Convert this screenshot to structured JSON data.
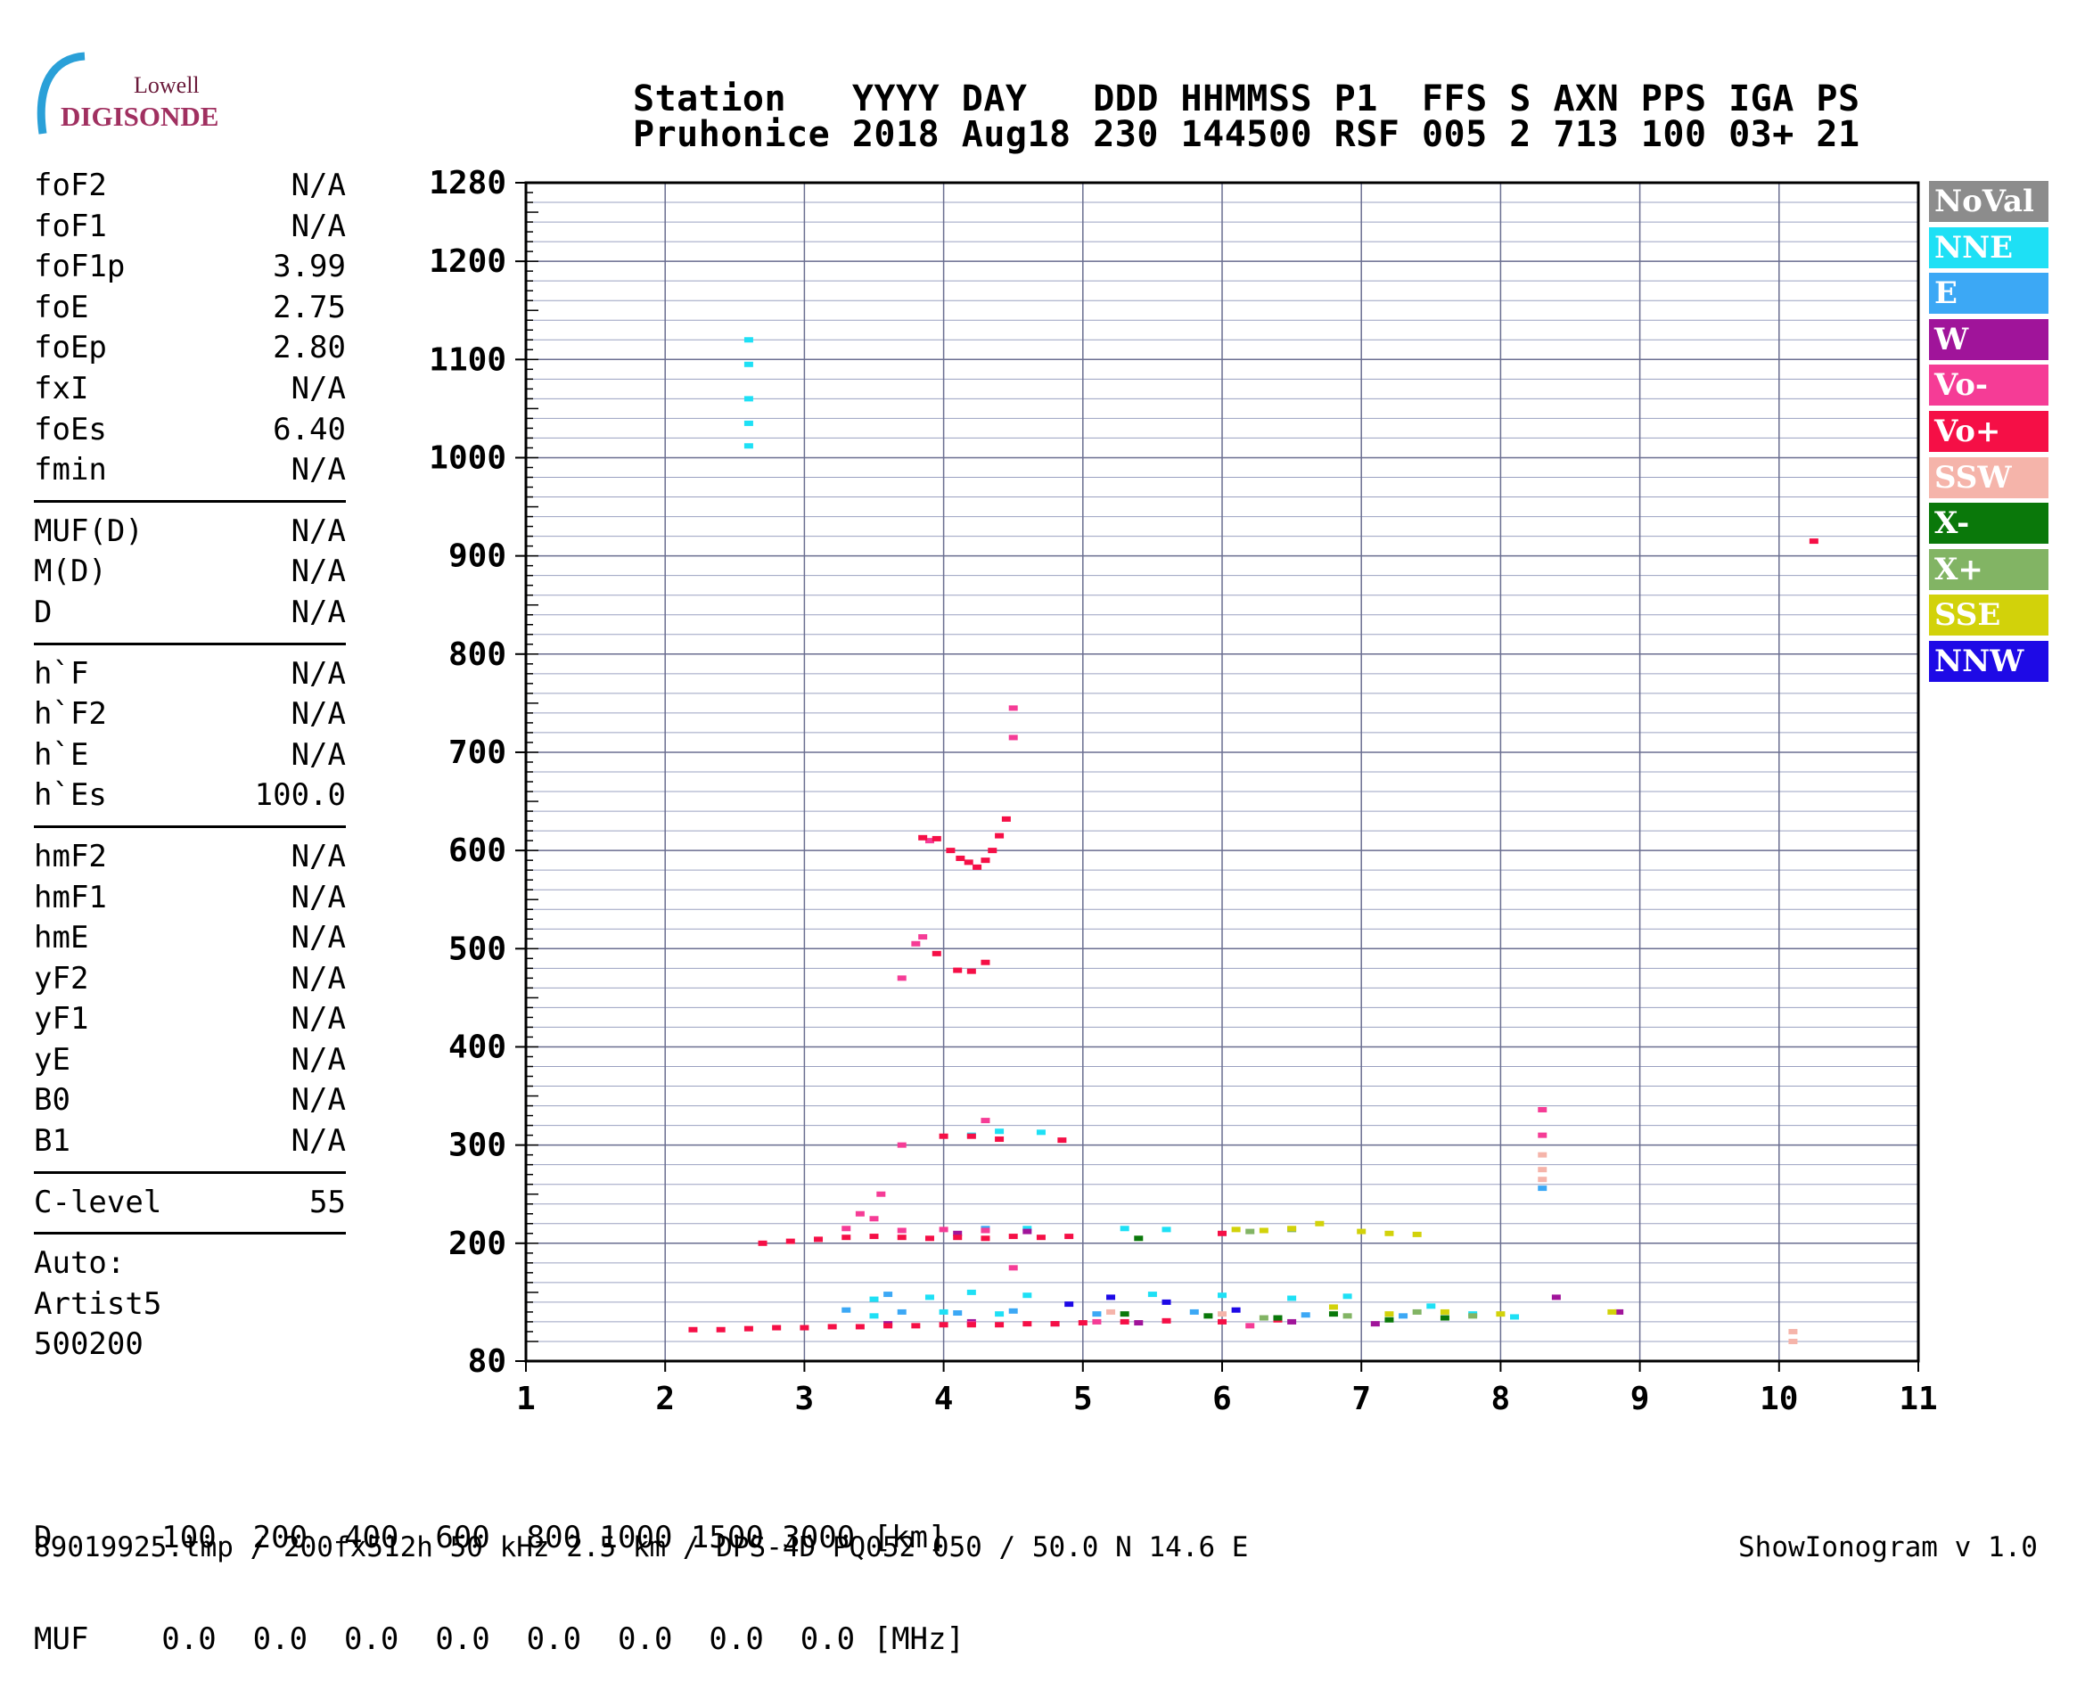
{
  "logo": {
    "line1": "Lowell",
    "line2": "DIGISONDE"
  },
  "header": {
    "labels": "Station   YYYY DAY   DDD HHMMSS P1  FFS S AXN PPS IGA PS",
    "values": "Pruhonice 2018 Aug18 230 144500 RSF 005 2 713 100 03+ 21"
  },
  "params": {
    "group1": [
      {
        "name": "foF2",
        "value": "N/A"
      },
      {
        "name": "foF1",
        "value": "N/A"
      },
      {
        "name": "foF1p",
        "value": "3.99"
      },
      {
        "name": "foE",
        "value": "2.75"
      },
      {
        "name": "foEp",
        "value": "2.80"
      },
      {
        "name": "fxI",
        "value": "N/A"
      },
      {
        "name": "foEs",
        "value": "6.40"
      },
      {
        "name": "fmin",
        "value": "N/A"
      }
    ],
    "group2": [
      {
        "name": "MUF(D)",
        "value": "N/A"
      },
      {
        "name": "M(D)",
        "value": "N/A"
      },
      {
        "name": "D",
        "value": "N/A"
      }
    ],
    "group3": [
      {
        "name": "h`F",
        "value": "N/A"
      },
      {
        "name": "h`F2",
        "value": "N/A"
      },
      {
        "name": "h`E",
        "value": "N/A"
      },
      {
        "name": "h`Es",
        "value": "100.0"
      }
    ],
    "group4": [
      {
        "name": "hmF2",
        "value": "N/A"
      },
      {
        "name": "hmF1",
        "value": "N/A"
      },
      {
        "name": "hmE",
        "value": "N/A"
      },
      {
        "name": "yF2",
        "value": "N/A"
      },
      {
        "name": "yF1",
        "value": "N/A"
      },
      {
        "name": "yE",
        "value": "N/A"
      },
      {
        "name": "B0",
        "value": "N/A"
      },
      {
        "name": "B1",
        "value": "N/A"
      }
    ],
    "group5": [
      {
        "name": "C-level",
        "value": "55"
      }
    ],
    "auto": [
      "Auto:",
      "Artist5",
      "500200"
    ]
  },
  "legend": [
    {
      "label": "NoVal",
      "color": "#8c8c8c"
    },
    {
      "label": "NNE",
      "color": "#1ee0f5"
    },
    {
      "label": "E",
      "color": "#3ca8f5"
    },
    {
      "label": "W",
      "color": "#a0149a"
    },
    {
      "label": "Vo-",
      "color": "#f53c96"
    },
    {
      "label": "Vo+",
      "color": "#f50f46"
    },
    {
      "label": "SSW",
      "color": "#f5b4aa"
    },
    {
      "label": "X-",
      "color": "#0a780a"
    },
    {
      "label": "X+",
      "color": "#82b464"
    },
    {
      "label": "SSE",
      "color": "#d2d20a"
    },
    {
      "label": "NNW",
      "color": "#1e0ae6"
    }
  ],
  "chart_data": {
    "type": "scatter",
    "xlim": [
      1,
      11
    ],
    "ylim": [
      80,
      1280
    ],
    "x_ticks": [
      1,
      2,
      3,
      4,
      5,
      6,
      7,
      8,
      9,
      10,
      11
    ],
    "y_ticks": [
      80,
      200,
      300,
      400,
      500,
      600,
      700,
      800,
      900,
      1000,
      1100,
      1200,
      1280
    ],
    "grid": true,
    "series": [
      {
        "name": "NNE",
        "points": [
          [
            2.6,
            1120
          ],
          [
            2.6,
            1095
          ],
          [
            2.6,
            1060
          ],
          [
            2.6,
            1035
          ],
          [
            2.6,
            1012
          ],
          [
            4.2,
            310
          ],
          [
            4.4,
            314
          ],
          [
            4.7,
            313
          ],
          [
            3.5,
            143
          ],
          [
            3.9,
            145
          ],
          [
            4.2,
            150
          ],
          [
            4.6,
            147
          ],
          [
            5.5,
            148
          ],
          [
            6.0,
            147
          ],
          [
            6.5,
            144
          ],
          [
            6.9,
            146
          ],
          [
            7.5,
            136
          ],
          [
            7.8,
            128
          ],
          [
            8.1,
            125
          ],
          [
            5.3,
            215
          ],
          [
            5.6,
            214
          ],
          [
            4.6,
            215
          ],
          [
            3.5,
            126
          ],
          [
            4.0,
            130
          ],
          [
            4.4,
            128
          ]
        ]
      },
      {
        "name": "E",
        "points": [
          [
            3.3,
            132
          ],
          [
            3.7,
            130
          ],
          [
            4.1,
            129
          ],
          [
            4.5,
            131
          ],
          [
            5.1,
            128
          ],
          [
            5.8,
            130
          ],
          [
            6.6,
            127
          ],
          [
            7.3,
            126
          ],
          [
            8.3,
            256
          ],
          [
            4.3,
            215
          ],
          [
            3.6,
            148
          ]
        ]
      },
      {
        "name": "W",
        "points": [
          [
            3.6,
            118
          ],
          [
            4.2,
            120
          ],
          [
            4.8,
            118
          ],
          [
            5.4,
            119
          ],
          [
            6.5,
            120
          ],
          [
            7.1,
            118
          ],
          [
            8.4,
            145
          ],
          [
            8.85,
            130
          ],
          [
            4.1,
            210
          ],
          [
            4.6,
            212
          ]
        ]
      },
      {
        "name": "Vo-",
        "points": [
          [
            3.4,
            230
          ],
          [
            3.5,
            225
          ],
          [
            3.55,
            250
          ],
          [
            3.3,
            215
          ],
          [
            3.7,
            213
          ],
          [
            4.0,
            214
          ],
          [
            4.3,
            213
          ],
          [
            3.85,
            512
          ],
          [
            3.8,
            505
          ],
          [
            3.7,
            470
          ],
          [
            3.7,
            300
          ],
          [
            4.3,
            325
          ],
          [
            4.5,
            175
          ],
          [
            4.2,
            118
          ],
          [
            5.1,
            120
          ],
          [
            6.2,
            116
          ],
          [
            3.9,
            610
          ],
          [
            4.5,
            745
          ],
          [
            4.5,
            715
          ],
          [
            8.3,
            336
          ],
          [
            8.3,
            310
          ]
        ]
      },
      {
        "name": "Vo+",
        "points": [
          [
            2.2,
            112
          ],
          [
            2.4,
            112
          ],
          [
            2.6,
            113
          ],
          [
            2.8,
            114
          ],
          [
            3.0,
            114
          ],
          [
            3.2,
            115
          ],
          [
            3.4,
            115
          ],
          [
            3.6,
            116
          ],
          [
            3.8,
            116
          ],
          [
            4.0,
            117
          ],
          [
            4.2,
            117
          ],
          [
            4.4,
            117
          ],
          [
            4.6,
            118
          ],
          [
            4.8,
            118
          ],
          [
            5.0,
            119
          ],
          [
            5.3,
            120
          ],
          [
            5.6,
            121
          ],
          [
            6.0,
            120
          ],
          [
            6.4,
            122
          ],
          [
            2.7,
            200
          ],
          [
            2.9,
            202
          ],
          [
            3.1,
            204
          ],
          [
            3.3,
            206
          ],
          [
            3.5,
            207
          ],
          [
            3.7,
            206
          ],
          [
            3.9,
            205
          ],
          [
            4.1,
            206
          ],
          [
            4.3,
            205
          ],
          [
            4.5,
            207
          ],
          [
            4.7,
            206
          ],
          [
            4.9,
            207
          ],
          [
            3.85,
            613
          ],
          [
            3.95,
            612
          ],
          [
            4.05,
            600
          ],
          [
            4.12,
            592
          ],
          [
            4.18,
            588
          ],
          [
            4.24,
            583
          ],
          [
            4.3,
            590
          ],
          [
            4.35,
            600
          ],
          [
            4.4,
            615
          ],
          [
            4.45,
            632
          ],
          [
            3.95,
            495
          ],
          [
            4.1,
            478
          ],
          [
            4.2,
            477
          ],
          [
            4.3,
            486
          ],
          [
            4.0,
            309
          ],
          [
            4.2,
            309
          ],
          [
            4.4,
            306
          ],
          [
            4.85,
            305
          ],
          [
            6.0,
            210
          ],
          [
            10.25,
            915
          ]
        ]
      },
      {
        "name": "SSW",
        "points": [
          [
            10.1,
            110
          ],
          [
            10.1,
            100
          ],
          [
            8.3,
            290
          ],
          [
            8.3,
            275
          ],
          [
            8.3,
            265
          ],
          [
            5.2,
            130
          ],
          [
            6.0,
            128
          ]
        ]
      },
      {
        "name": "X-",
        "points": [
          [
            5.4,
            205
          ],
          [
            5.3,
            128
          ],
          [
            5.9,
            126
          ],
          [
            6.4,
            124
          ],
          [
            6.8,
            128
          ],
          [
            7.2,
            122
          ],
          [
            7.6,
            124
          ]
        ]
      },
      {
        "name": "X+",
        "points": [
          [
            6.2,
            212
          ],
          [
            6.5,
            214
          ],
          [
            6.3,
            124
          ],
          [
            6.9,
            126
          ],
          [
            7.4,
            130
          ],
          [
            7.8,
            126
          ]
        ]
      },
      {
        "name": "SSE",
        "points": [
          [
            6.1,
            214
          ],
          [
            6.3,
            213
          ],
          [
            6.5,
            215
          ],
          [
            6.7,
            220
          ],
          [
            7.0,
            212
          ],
          [
            7.2,
            210
          ],
          [
            7.4,
            209
          ],
          [
            6.8,
            135
          ],
          [
            7.2,
            128
          ],
          [
            7.6,
            130
          ],
          [
            8.0,
            128
          ],
          [
            8.8,
            130
          ]
        ]
      },
      {
        "name": "NNW",
        "points": [
          [
            5.2,
            145
          ],
          [
            5.6,
            140
          ],
          [
            4.9,
            138
          ],
          [
            6.1,
            132
          ]
        ]
      }
    ]
  },
  "bottom": {
    "d_row": "D      100  200  400  600  800 1000 1500 3000 [km]",
    "muf_row": "MUF    0.0  0.0  0.0  0.0  0.0  0.0  0.0  0.0 [MHz]",
    "footer_left": "89019925.tmp / 200fx512h 50 kHz 2.5 km / DPS-4D PQ052 050 / 50.0 N 14.6 E",
    "footer_right": "ShowIonogram v 1.0"
  }
}
